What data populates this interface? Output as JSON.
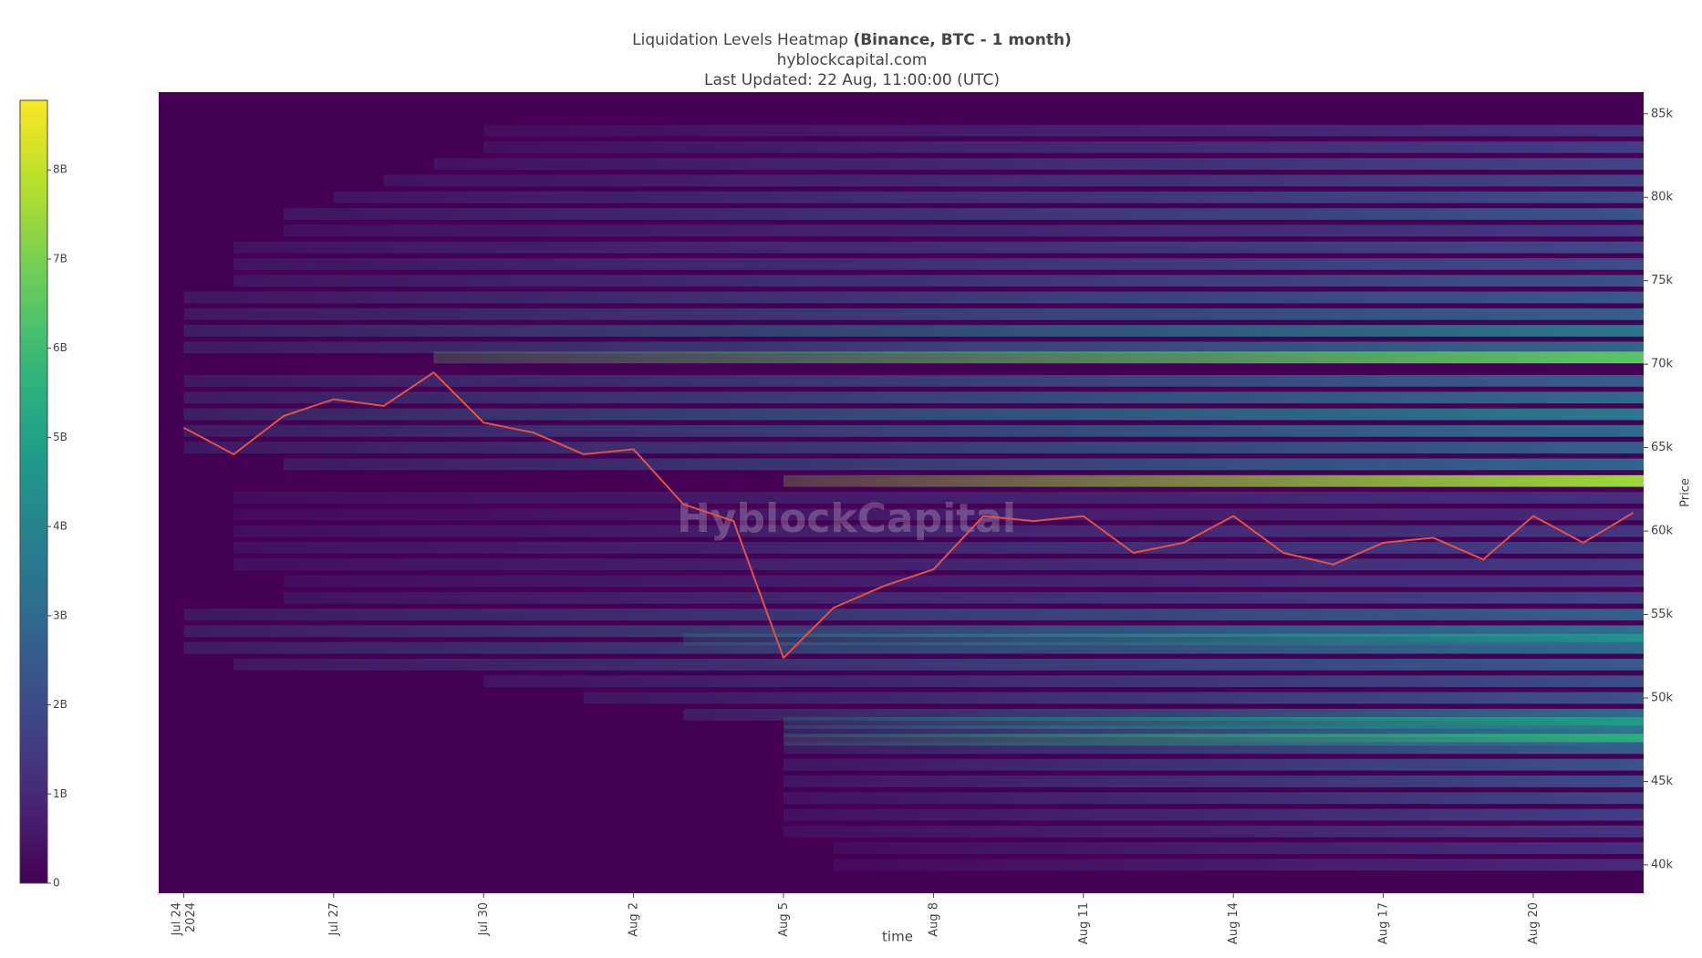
{
  "chart_data": {
    "type": "heatmap",
    "title": "Liquidation Levels Heatmap",
    "title_emphasis": "(Binance, BTC - 1 month)",
    "subtitle": "hyblockcapital.com",
    "updated": "Last Updated: 22 Aug, 11:00:00 (UTC)",
    "watermark": "HyblockCapital",
    "x_label": "time",
    "y_label": "Price",
    "xlim": [
      "2024-07-23T12:00",
      "2024-08-22T05:00"
    ],
    "xticks": [
      {
        "value": "2024-07-24",
        "label": "Jul 24\n2024"
      },
      {
        "value": "2024-07-27",
        "label": "Jul 27"
      },
      {
        "value": "2024-07-30",
        "label": "Jul 30"
      },
      {
        "value": "2024-08-02",
        "label": "Aug 2"
      },
      {
        "value": "2024-08-05",
        "label": "Aug 5"
      },
      {
        "value": "2024-08-08",
        "label": "Aug 8"
      },
      {
        "value": "2024-08-11",
        "label": "Aug 11"
      },
      {
        "value": "2024-08-14",
        "label": "Aug 14"
      },
      {
        "value": "2024-08-17",
        "label": "Aug 17"
      },
      {
        "value": "2024-08-20",
        "label": "Aug 20"
      }
    ],
    "ylim": [
      38300,
      86300
    ],
    "yticks": [
      {
        "value": 40000,
        "label": "40k"
      },
      {
        "value": 45000,
        "label": "45k"
      },
      {
        "value": 50000,
        "label": "50k"
      },
      {
        "value": 55000,
        "label": "55k"
      },
      {
        "value": 60000,
        "label": "60k"
      },
      {
        "value": 65000,
        "label": "65k"
      },
      {
        "value": 70000,
        "label": "70k"
      },
      {
        "value": 75000,
        "label": "75k"
      },
      {
        "value": 80000,
        "label": "80k"
      },
      {
        "value": 85000,
        "label": "85k"
      }
    ],
    "zlim": [
      0,
      8780000000
    ],
    "zticks": [
      0,
      {
        "value": 1000000000,
        "label": "1B"
      },
      {
        "value": 2000000000,
        "label": "2B"
      },
      {
        "value": 3000000000,
        "label": "3B"
      },
      {
        "value": 4000000000,
        "label": "4B"
      },
      {
        "value": 5000000000,
        "label": "5B"
      },
      {
        "value": 6000000000,
        "label": "6B"
      },
      {
        "value": 7000000000,
        "label": "7B"
      },
      {
        "value": 8000000000,
        "label": "8B"
      }
    ],
    "colorscale": "viridis",
    "bands": {
      "price": [
        84000,
        83000,
        82000,
        81000,
        80000,
        79000,
        78000,
        77000,
        76000,
        75000,
        74000,
        73000,
        72000,
        71000,
        70400,
        69000,
        68000,
        67000,
        66000,
        65000,
        64000,
        63000,
        62000,
        61000,
        60000,
        59000,
        58000,
        57000,
        56000,
        55000,
        54000,
        53500,
        53000,
        52000,
        51000,
        50000,
        49000,
        48500,
        48000,
        47500,
        47000,
        46000,
        45000,
        44000,
        43000,
        42000,
        41000,
        40000
      ],
      "start": [
        "2024-07-30",
        "2024-07-30",
        "2024-07-29",
        "2024-07-28",
        "2024-07-27",
        "2024-07-26",
        "2024-07-26",
        "2024-07-25",
        "2024-07-25",
        "2024-07-25",
        "2024-07-24",
        "2024-07-24",
        "2024-07-24",
        "2024-07-24",
        "2024-07-29",
        "2024-07-24",
        "2024-07-24",
        "2024-07-24",
        "2024-07-24",
        "2024-07-24",
        "2024-07-26",
        "2024-08-05",
        "2024-07-25",
        "2024-07-25",
        "2024-07-25",
        "2024-07-25",
        "2024-07-25",
        "2024-07-26",
        "2024-07-26",
        "2024-07-24",
        "2024-07-24",
        "2024-08-03",
        "2024-07-24",
        "2024-07-25",
        "2024-07-30",
        "2024-08-01",
        "2024-08-03",
        "2024-08-05",
        "2024-08-05",
        "2024-08-05",
        "2024-08-05",
        "2024-08-05",
        "2024-08-05",
        "2024-08-05",
        "2024-08-05",
        "2024-08-05",
        "2024-08-06",
        "2024-08-06"
      ],
      "values": [
        1200000000,
        1600000000,
        1800000000,
        1800000000,
        2000000000,
        2200000000,
        1500000000,
        1900000000,
        2000000000,
        2200000000,
        2400000000,
        2600000000,
        3400000000,
        2800000000,
        6500000000,
        2600000000,
        3000000000,
        3600000000,
        3000000000,
        2600000000,
        2800000000,
        7500000000,
        1200000000,
        1000000000,
        1400000000,
        1600000000,
        1500000000,
        1300000000,
        1800000000,
        2600000000,
        3200000000,
        4500000000,
        3000000000,
        2400000000,
        2000000000,
        2200000000,
        3000000000,
        4800000000,
        3400000000,
        5500000000,
        2600000000,
        2200000000,
        2000000000,
        1800000000,
        1600000000,
        1400000000,
        1200000000,
        1000000000
      ]
    },
    "price": {
      "color": "#e0514a",
      "x": [
        "2024-07-24",
        "2024-07-25",
        "2024-07-26",
        "2024-07-27",
        "2024-07-28",
        "2024-07-29",
        "2024-07-30",
        "2024-07-31",
        "2024-08-01",
        "2024-08-02",
        "2024-08-03",
        "2024-08-04",
        "2024-08-05",
        "2024-08-06",
        "2024-08-07",
        "2024-08-08",
        "2024-08-09",
        "2024-08-10",
        "2024-08-11",
        "2024-08-12",
        "2024-08-13",
        "2024-08-14",
        "2024-08-15",
        "2024-08-16",
        "2024-08-17",
        "2024-08-18",
        "2024-08-19",
        "2024-08-20",
        "2024-08-21",
        "2024-08-22"
      ],
      "values": [
        66200,
        64600,
        66900,
        67900,
        67500,
        69500,
        66500,
        65900,
        64600,
        64900,
        61600,
        60600,
        52400,
        55400,
        56700,
        57700,
        60900,
        60600,
        60900,
        58700,
        59300,
        60900,
        58700,
        58000,
        59300,
        59600,
        58300,
        60900,
        59300,
        61100
      ]
    }
  }
}
